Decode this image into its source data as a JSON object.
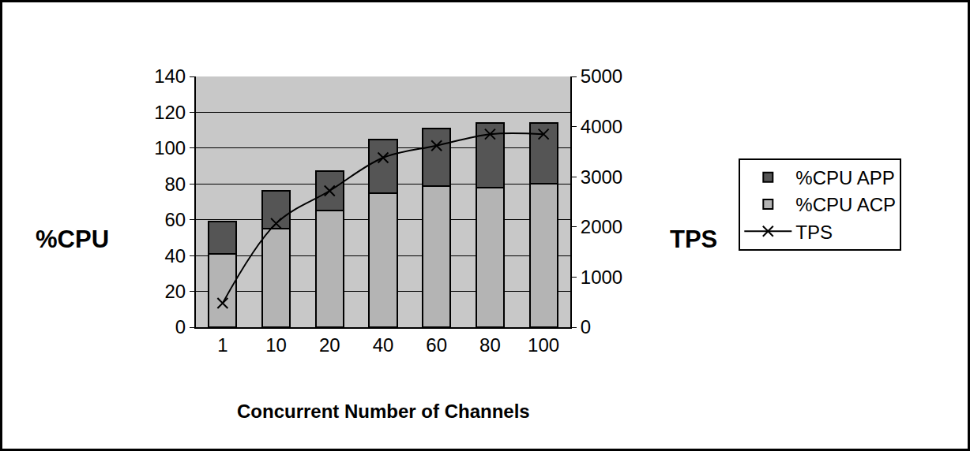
{
  "chart_data": {
    "type": "bar",
    "x_label": "Concurrent Number of Channels",
    "y_label": "%CPU",
    "y2_label": "TPS",
    "categories": [
      "1",
      "10",
      "20",
      "40",
      "60",
      "80",
      "100"
    ],
    "stacked": true,
    "grid": true,
    "legend": "right",
    "ylim": [
      0,
      140
    ],
    "yticks": [
      0,
      20,
      40,
      60,
      80,
      100,
      120,
      140
    ],
    "y2lim": [
      0,
      5000
    ],
    "y2ticks": [
      0,
      1000,
      2000,
      3000,
      4000,
      5000
    ],
    "series": [
      {
        "name": "%CPU ACP",
        "type": "bar",
        "color": "#b4b4b4",
        "values": [
          41,
          55,
          65,
          75,
          79,
          78,
          80
        ]
      },
      {
        "name": "%CPU APP",
        "type": "bar",
        "color": "#555555",
        "values": [
          18,
          21,
          22,
          30,
          32,
          36,
          34
        ]
      },
      {
        "name": "TPS",
        "type": "line",
        "axis": "y2",
        "color": "#000000",
        "marker": "x",
        "line_style": "solid",
        "values": [
          480,
          2070,
          2720,
          3380,
          3620,
          3850,
          3850
        ]
      }
    ]
  }
}
